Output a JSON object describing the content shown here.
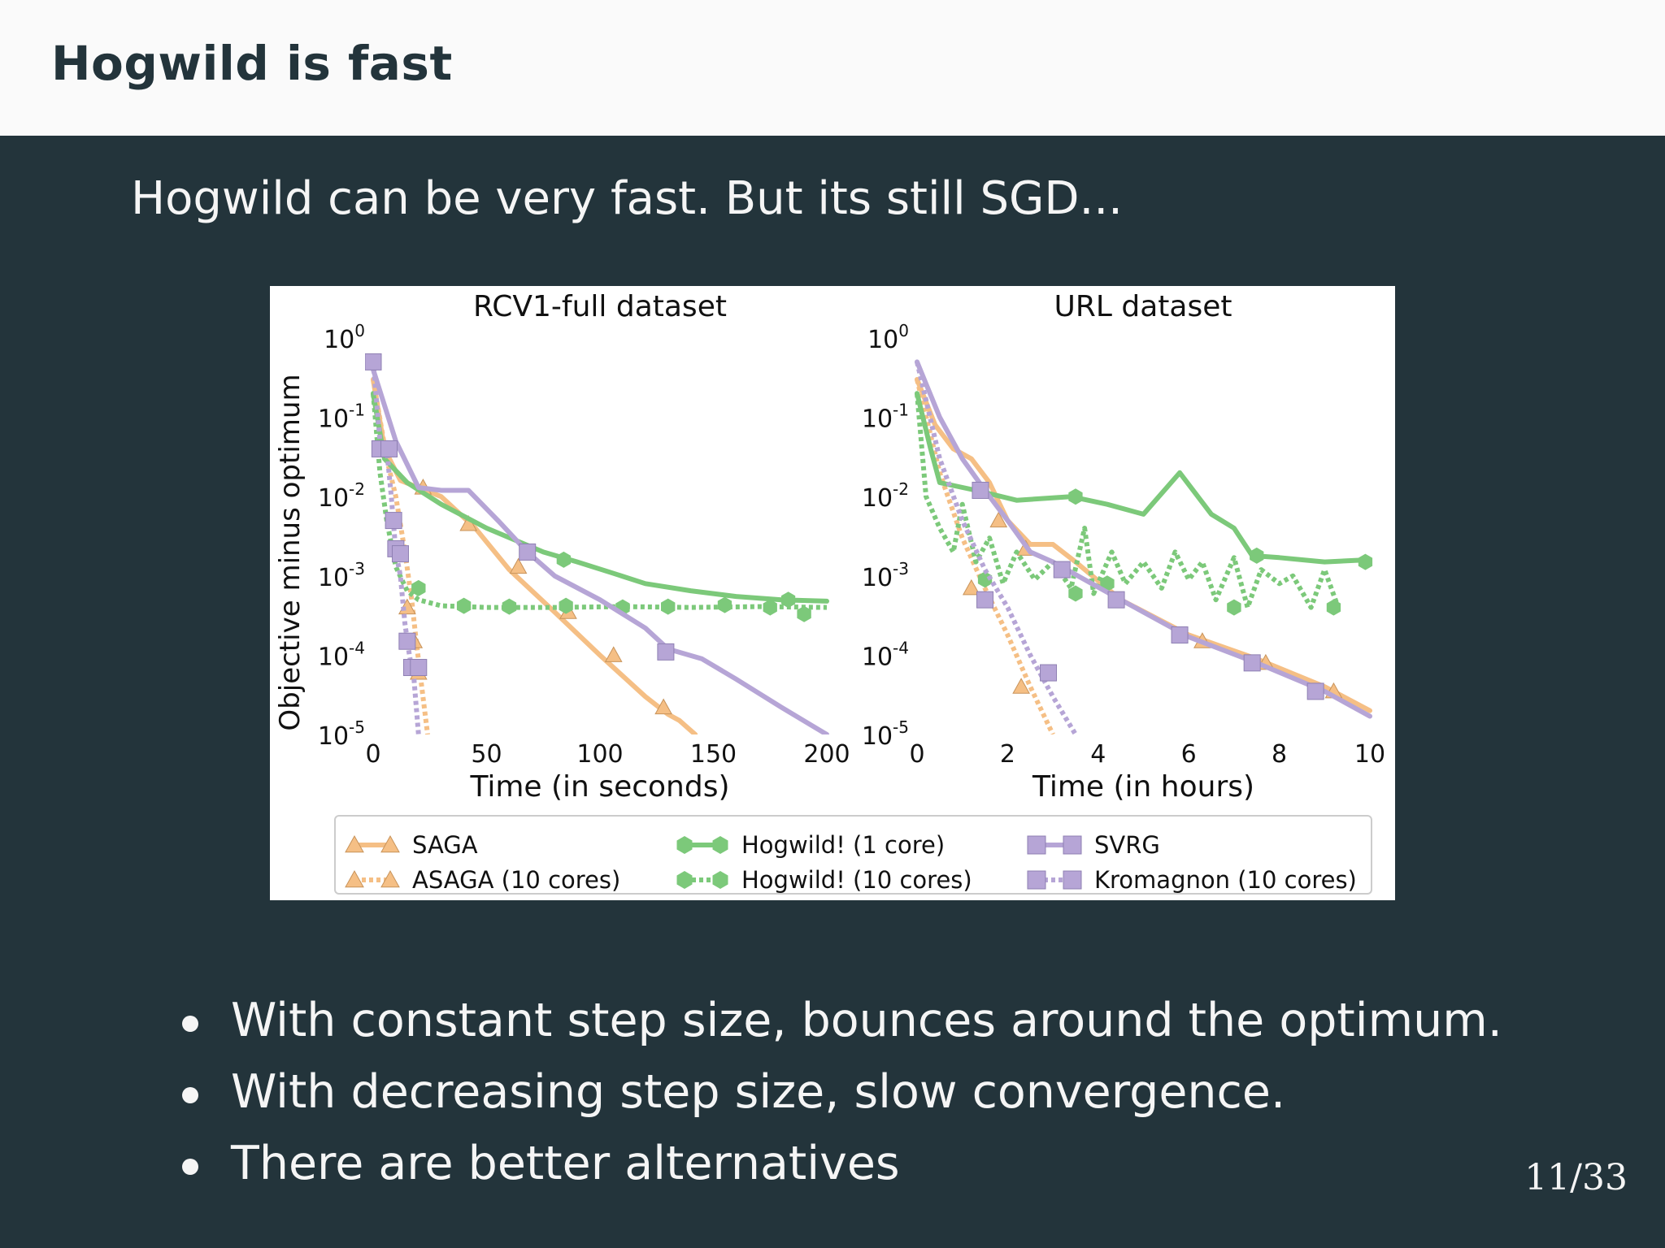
{
  "slide": {
    "title": "Hogwild is fast",
    "lead": "Hogwild can be very fast. But its still SGD...",
    "bullets": [
      "With constant step size, bounces around the optimum.",
      "With decreasing step size, slow convergence.",
      "There are better alternatives"
    ],
    "page": "11/33"
  },
  "chart_data": [
    {
      "type": "line",
      "title": "RCV1-full dataset",
      "xlabel": "Time (in seconds)",
      "ylabel": "Objective minus optimum",
      "xlim": [
        0,
        200
      ],
      "ylim": [
        1e-05,
        1
      ],
      "yscale": "log",
      "xticks": [
        "0",
        "50",
        "100",
        "150",
        "200"
      ],
      "yticks": [
        {
          "base": "10",
          "exp": "0"
        },
        {
          "base": "10",
          "exp": "-1"
        },
        {
          "base": "10",
          "exp": "-2"
        },
        {
          "base": "10",
          "exp": "-3"
        },
        {
          "base": "10",
          "exp": "-4"
        },
        {
          "base": "10",
          "exp": "-5"
        }
      ],
      "series": [
        {
          "name": "SAGA",
          "color": "#f5bf85",
          "dash": "solid",
          "marker": "triangle",
          "points": [
            [
              0,
              0.3
            ],
            [
              5,
              0.04
            ],
            [
              12,
              0.016
            ],
            [
              20,
              0.013
            ],
            [
              30,
              0.01
            ],
            [
              45,
              0.004
            ],
            [
              60,
              0.0012
            ],
            [
              80,
              0.00035
            ],
            [
              100,
              0.0001
            ],
            [
              120,
              3e-05
            ],
            [
              130,
              1.8e-05
            ],
            [
              135,
              1.5e-05
            ],
            [
              142,
              1e-05
            ]
          ],
          "markers": [
            [
              22,
              0.013
            ],
            [
              42,
              0.0045
            ],
            [
              64,
              0.0013
            ],
            [
              86,
              0.00035
            ],
            [
              106,
              0.0001
            ],
            [
              128,
              2.2e-05
            ]
          ]
        },
        {
          "name": "ASAGA (10 cores)",
          "color": "#f5bf85",
          "dash": "dotted",
          "marker": "triangle",
          "points": [
            [
              0,
              0.3
            ],
            [
              6,
              0.03
            ],
            [
              10,
              0.01
            ],
            [
              14,
              0.002
            ],
            [
              17,
              0.0005
            ],
            [
              19,
              0.00015
            ],
            [
              21,
              5e-05
            ],
            [
              24,
              1e-05
            ]
          ],
          "markers": [
            [
              15,
              0.0004
            ],
            [
              18,
              0.00015
            ],
            [
              20,
              6e-05
            ]
          ]
        },
        {
          "name": "Hogwild! (1 core)",
          "color": "#7cc97a",
          "dash": "solid",
          "marker": "hexagon",
          "points": [
            [
              0,
              0.2
            ],
            [
              5,
              0.03
            ],
            [
              15,
              0.015
            ],
            [
              30,
              0.008
            ],
            [
              50,
              0.004
            ],
            [
              75,
              0.002
            ],
            [
              90,
              0.0015
            ],
            [
              105,
              0.0011
            ],
            [
              120,
              0.0008
            ],
            [
              140,
              0.00065
            ],
            [
              160,
              0.00055
            ],
            [
              180,
              0.0005
            ],
            [
              200,
              0.00048
            ]
          ],
          "markers": [
            [
              84,
              0.0016
            ],
            [
              183,
              0.0005
            ]
          ]
        },
        {
          "name": "Hogwild! (10 cores)",
          "color": "#7cc97a",
          "dash": "dotted",
          "marker": "hexagon",
          "points": [
            [
              0,
              0.2
            ],
            [
              3,
              0.02
            ],
            [
              6,
              0.005
            ],
            [
              10,
              0.0013
            ],
            [
              15,
              0.00065
            ],
            [
              20,
              0.0005
            ],
            [
              30,
              0.00042
            ],
            [
              50,
              0.0004
            ],
            [
              80,
              0.0004
            ],
            [
              110,
              0.00041
            ],
            [
              140,
              0.0004
            ],
            [
              170,
              0.00041
            ],
            [
              200,
              0.0004
            ]
          ],
          "markers": [
            [
              20,
              0.0007
            ],
            [
              40,
              0.00042
            ],
            [
              60,
              0.00041
            ],
            [
              85,
              0.00042
            ],
            [
              110,
              0.0004
            ],
            [
              130,
              0.00041
            ],
            [
              155,
              0.00043
            ],
            [
              175,
              0.0004
            ],
            [
              190,
              0.00033
            ]
          ]
        },
        {
          "name": "SVRG",
          "color": "#b6a5d6",
          "dash": "solid",
          "marker": "square",
          "points": [
            [
              0,
              0.4
            ],
            [
              10,
              0.05
            ],
            [
              20,
              0.013
            ],
            [
              30,
              0.012
            ],
            [
              42,
              0.012
            ],
            [
              55,
              0.005
            ],
            [
              68,
              0.002
            ],
            [
              80,
              0.001
            ],
            [
              100,
              0.0005
            ],
            [
              120,
              0.00022
            ],
            [
              130,
              0.00012
            ],
            [
              145,
              9e-05
            ],
            [
              160,
              5e-05
            ],
            [
              180,
              2.2e-05
            ],
            [
              200,
              1e-05
            ]
          ],
          "markers": [
            [
              68,
              0.002
            ],
            [
              129,
              0.00011
            ]
          ]
        },
        {
          "name": "Kromagnon (10 cores)",
          "color": "#b6a5d6",
          "dash": "dotted",
          "marker": "square",
          "points": [
            [
              0,
              0.5
            ],
            [
              3,
              0.05
            ],
            [
              6,
              0.04
            ],
            [
              8,
              0.01
            ],
            [
              10,
              0.002
            ],
            [
              12,
              0.001
            ],
            [
              14,
              0.00025
            ],
            [
              16,
              0.0001
            ],
            [
              18,
              5e-05
            ],
            [
              20,
              1e-05
            ]
          ],
          "markers": [
            [
              0,
              0.5
            ],
            [
              3,
              0.04
            ],
            [
              7,
              0.04
            ],
            [
              9,
              0.005
            ],
            [
              10,
              0.0022
            ],
            [
              12,
              0.0019
            ],
            [
              15,
              0.00015
            ],
            [
              17,
              7e-05
            ],
            [
              20,
              7e-05
            ]
          ]
        }
      ]
    },
    {
      "type": "line",
      "title": "URL dataset",
      "xlabel": "Time (in hours)",
      "ylabel": "",
      "xlim": [
        0,
        10
      ],
      "ylim": [
        1e-05,
        1
      ],
      "yscale": "log",
      "xticks": [
        "0",
        "2",
        "4",
        "6",
        "8",
        "10"
      ],
      "yticks": [
        {
          "base": "10",
          "exp": "0"
        },
        {
          "base": "10",
          "exp": "-1"
        },
        {
          "base": "10",
          "exp": "-2"
        },
        {
          "base": "10",
          "exp": "-3"
        },
        {
          "base": "10",
          "exp": "-4"
        },
        {
          "base": "10",
          "exp": "-5"
        }
      ],
      "series": [
        {
          "name": "SAGA",
          "color": "#f5bf85",
          "dash": "solid",
          "marker": "triangle",
          "points": [
            [
              0,
              0.3
            ],
            [
              0.4,
              0.08
            ],
            [
              0.8,
              0.04
            ],
            [
              1.2,
              0.03
            ],
            [
              1.6,
              0.015
            ],
            [
              2,
              0.005
            ],
            [
              2.5,
              0.0025
            ],
            [
              3,
              0.0025
            ],
            [
              3.5,
              0.0015
            ],
            [
              4.5,
              0.0005
            ],
            [
              6,
              0.00018
            ],
            [
              7.5,
              9e-05
            ],
            [
              9,
              4e-05
            ],
            [
              10,
              2e-05
            ]
          ],
          "markers": [
            [
              1.8,
              0.005
            ],
            [
              2.4,
              0.0022
            ],
            [
              6.3,
              0.00015
            ],
            [
              7.7,
              8e-05
            ],
            [
              9.2,
              3.5e-05
            ]
          ]
        },
        {
          "name": "ASAGA (10 cores)",
          "color": "#f5bf85",
          "dash": "dotted",
          "marker": "triangle",
          "points": [
            [
              0,
              0.3
            ],
            [
              0.5,
              0.02
            ],
            [
              1,
              0.003
            ],
            [
              1.5,
              0.0007
            ],
            [
              2,
              0.00018
            ],
            [
              2.5,
              4e-05
            ],
            [
              3,
              1e-05
            ]
          ],
          "markers": [
            [
              1.2,
              0.0007
            ],
            [
              2.3,
              4e-05
            ]
          ]
        },
        {
          "name": "Hogwild! (1 core)",
          "color": "#7cc97a",
          "dash": "solid",
          "marker": "hexagon",
          "points": [
            [
              0,
              0.2
            ],
            [
              0.3,
              0.04
            ],
            [
              0.5,
              0.015
            ],
            [
              1.3,
              0.012
            ],
            [
              2.2,
              0.009
            ],
            [
              3.4,
              0.01
            ],
            [
              4.2,
              0.008
            ],
            [
              5,
              0.006
            ],
            [
              5.8,
              0.02
            ],
            [
              6.5,
              0.006
            ],
            [
              7,
              0.004
            ],
            [
              7.4,
              0.0018
            ],
            [
              8,
              0.0017
            ],
            [
              9,
              0.0015
            ],
            [
              10,
              0.0016
            ]
          ],
          "markers": [
            [
              3.5,
              0.01
            ],
            [
              7.5,
              0.0018
            ],
            [
              9.9,
              0.0015
            ]
          ]
        },
        {
          "name": "Hogwild! (10 cores)",
          "color": "#7cc97a",
          "dash": "dotted",
          "marker": "hexagon",
          "points": [
            [
              0,
              0.2
            ],
            [
              0.2,
              0.01
            ],
            [
              0.5,
              0.004
            ],
            [
              0.8,
              0.002
            ],
            [
              1,
              0.008
            ],
            [
              1.3,
              0.0015
            ],
            [
              1.6,
              0.003
            ],
            [
              1.9,
              0.0008
            ],
            [
              2.2,
              0.002
            ],
            [
              2.6,
              0.0009
            ],
            [
              3,
              0.0015
            ],
            [
              3.4,
              0.0007
            ],
            [
              3.7,
              0.004
            ],
            [
              3.9,
              0.0006
            ],
            [
              4.3,
              0.002
            ],
            [
              4.6,
              0.0008
            ],
            [
              5,
              0.0015
            ],
            [
              5.4,
              0.0007
            ],
            [
              5.7,
              0.002
            ],
            [
              6,
              0.0009
            ],
            [
              6.3,
              0.0015
            ],
            [
              6.6,
              0.0005
            ],
            [
              7,
              0.0017
            ],
            [
              7.3,
              0.0004
            ],
            [
              7.6,
              0.0012
            ],
            [
              8,
              0.0008
            ],
            [
              8.3,
              0.001
            ],
            [
              8.7,
              0.0004
            ],
            [
              9,
              0.0012
            ],
            [
              9.3,
              0.0004
            ]
          ],
          "markers": [
            [
              1.5,
              0.0009
            ],
            [
              3.5,
              0.0006
            ],
            [
              4.2,
              0.0008
            ],
            [
              7,
              0.0004
            ],
            [
              9.2,
              0.0004
            ]
          ]
        },
        {
          "name": "SVRG",
          "color": "#b6a5d6",
          "dash": "solid",
          "marker": "square",
          "points": [
            [
              0,
              0.5
            ],
            [
              0.5,
              0.1
            ],
            [
              1,
              0.03
            ],
            [
              1.5,
              0.012
            ],
            [
              2,
              0.005
            ],
            [
              2.5,
              0.002
            ],
            [
              3,
              0.0015
            ],
            [
              4.5,
              0.0005
            ],
            [
              6,
              0.00017
            ],
            [
              7.5,
              8e-05
            ],
            [
              9,
              3.5e-05
            ],
            [
              10,
              1.7e-05
            ]
          ],
          "markers": [
            [
              1.4,
              0.012
            ],
            [
              3.2,
              0.0012
            ],
            [
              4.4,
              0.0005
            ],
            [
              5.8,
              0.00018
            ],
            [
              7.4,
              8e-05
            ],
            [
              8.8,
              3.5e-05
            ]
          ]
        },
        {
          "name": "Kromagnon (10 cores)",
          "color": "#b6a5d6",
          "dash": "dotted",
          "marker": "square",
          "points": [
            [
              0,
              0.5
            ],
            [
              0.5,
              0.03
            ],
            [
              1,
              0.005
            ],
            [
              1.5,
              0.0012
            ],
            [
              2,
              0.0004
            ],
            [
              2.5,
              0.0001
            ],
            [
              3,
              3e-05
            ],
            [
              3.5,
              1e-05
            ]
          ],
          "markers": [
            [
              1.5,
              0.0005
            ],
            [
              2.9,
              6e-05
            ]
          ]
        }
      ]
    }
  ],
  "legend": [
    {
      "name": "SAGA",
      "color": "#f5bf85",
      "dash": "solid",
      "marker": "triangle"
    },
    {
      "name": "ASAGA (10 cores)",
      "color": "#f5bf85",
      "dash": "dotted",
      "marker": "triangle"
    },
    {
      "name": "Hogwild! (1 core)",
      "color": "#7cc97a",
      "dash": "solid",
      "marker": "hexagon"
    },
    {
      "name": "Hogwild! (10 cores)",
      "color": "#7cc97a",
      "dash": "dotted",
      "marker": "hexagon"
    },
    {
      "name": "SVRG",
      "color": "#b6a5d6",
      "dash": "solid",
      "marker": "square"
    },
    {
      "name": "Kromagnon (10 cores)",
      "color": "#b6a5d6",
      "dash": "dotted",
      "marker": "square"
    }
  ]
}
